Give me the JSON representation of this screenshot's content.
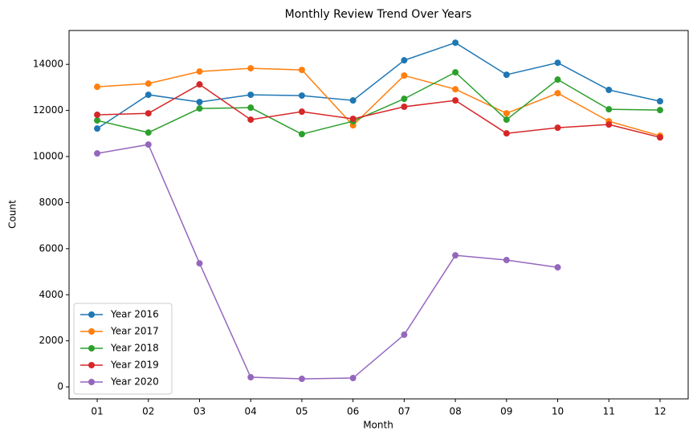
{
  "chart_data": {
    "type": "line",
    "title": "Monthly Review Trend Over Years",
    "x_label": "Month",
    "y_label": "Count",
    "categories": [
      "01",
      "02",
      "03",
      "04",
      "05",
      "06",
      "07",
      "08",
      "09",
      "10",
      "11",
      "12"
    ],
    "series": [
      {
        "name": "Year 2016",
        "color": "#1f77b4",
        "values": [
          11215,
          12680,
          12365,
          12680,
          12645,
          12435,
          14175,
          14940,
          13550,
          14070,
          12890,
          12400
        ]
      },
      {
        "name": "Year 2017",
        "color": "#ff7f0e",
        "values": [
          13025,
          13165,
          13690,
          13830,
          13760,
          11355,
          13515,
          12920,
          11875,
          12750,
          11530,
          10900
        ]
      },
      {
        "name": "Year 2018",
        "color": "#2ca02c",
        "values": [
          11565,
          11040,
          12085,
          12120,
          10970,
          11530,
          12505,
          13655,
          11600,
          13340,
          12050,
          12015
        ]
      },
      {
        "name": "Year 2019",
        "color": "#d62728",
        "values": [
          11810,
          11875,
          13130,
          11600,
          11945,
          11635,
          12160,
          12435,
          11005,
          11250,
          11390,
          10830
        ]
      },
      {
        "name": "Year 2020",
        "color": "#9467bd",
        "values": [
          10135,
          10520,
          5365,
          420,
          350,
          385,
          2265,
          5710,
          5505,
          5190,
          null,
          null
        ]
      }
    ],
    "ylim": [
      -520,
      15470
    ],
    "yticks": [
      0,
      2000,
      4000,
      6000,
      8000,
      10000,
      12000,
      14000
    ],
    "grid": false,
    "legend": "lower left"
  }
}
